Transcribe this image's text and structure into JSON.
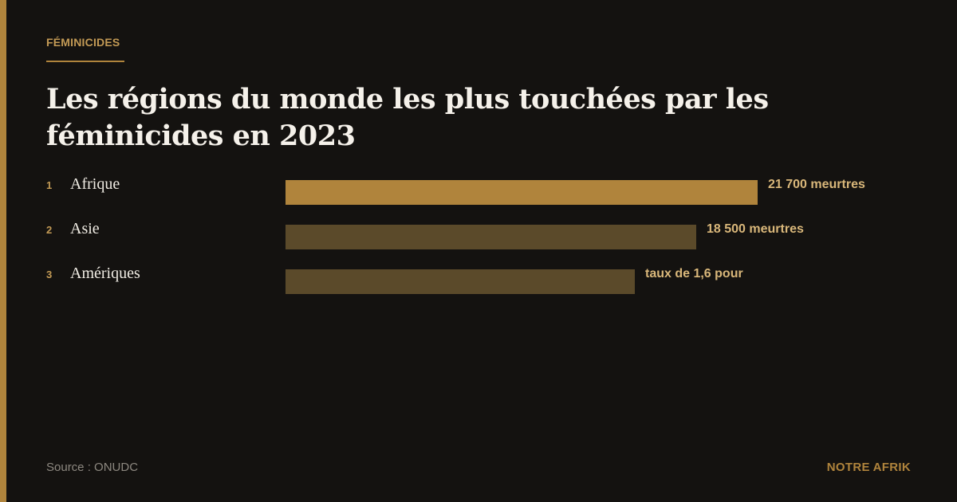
{
  "header": {
    "kicker": "FÉMINICIDES",
    "title": "Les régions du monde les plus touchées par les féminicides en 2023"
  },
  "rows": [
    {
      "rank": 1,
      "region": "Afrique",
      "value_label": "21 700 meurtres"
    },
    {
      "rank": 2,
      "region": "Asie",
      "value_label": "18 500 meurtres"
    },
    {
      "rank": 3,
      "region": "Amériques",
      "value_label": "taux de 1,6 pour"
    }
  ],
  "footer": {
    "source": "Source : ONUDC",
    "brand": "NOTRE AFRIK"
  }
}
